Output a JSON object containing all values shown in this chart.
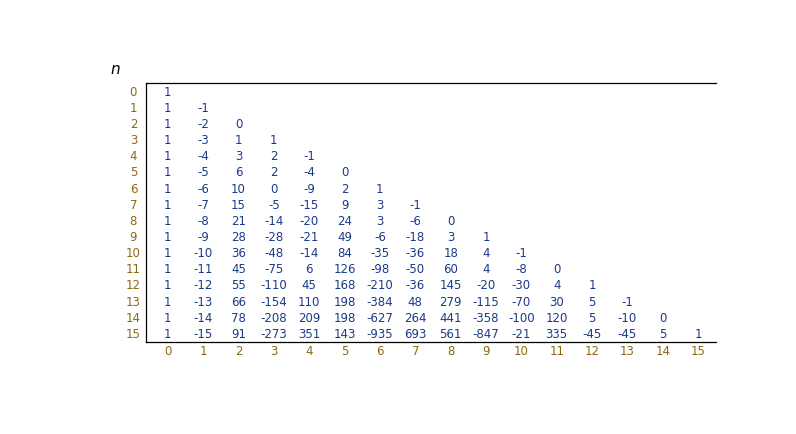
{
  "title": "n",
  "rows": [
    [
      0,
      [
        1
      ]
    ],
    [
      1,
      [
        1,
        -1
      ]
    ],
    [
      2,
      [
        1,
        -2,
        0
      ]
    ],
    [
      3,
      [
        1,
        -3,
        1,
        1
      ]
    ],
    [
      4,
      [
        1,
        -4,
        3,
        2,
        -1
      ]
    ],
    [
      5,
      [
        1,
        -5,
        6,
        2,
        -4,
        0
      ]
    ],
    [
      6,
      [
        1,
        -6,
        10,
        0,
        -9,
        2,
        1
      ]
    ],
    [
      7,
      [
        1,
        -7,
        15,
        -5,
        -15,
        9,
        3,
        -1
      ]
    ],
    [
      8,
      [
        1,
        -8,
        21,
        -14,
        -20,
        24,
        3,
        -6,
        0
      ]
    ],
    [
      9,
      [
        1,
        -9,
        28,
        -28,
        -21,
        49,
        -6,
        -18,
        3,
        1
      ]
    ],
    [
      10,
      [
        1,
        -10,
        36,
        -48,
        -14,
        84,
        -35,
        -36,
        18,
        4,
        -1
      ]
    ],
    [
      11,
      [
        1,
        -11,
        45,
        -75,
        6,
        126,
        -98,
        -50,
        60,
        4,
        -8,
        0
      ]
    ],
    [
      12,
      [
        1,
        -12,
        55,
        -110,
        45,
        168,
        -210,
        -36,
        145,
        -20,
        -30,
        4,
        1
      ]
    ],
    [
      13,
      [
        1,
        -13,
        66,
        -154,
        110,
        198,
        -384,
        48,
        279,
        -115,
        -70,
        30,
        5,
        -1
      ]
    ],
    [
      14,
      [
        1,
        -14,
        78,
        -208,
        209,
        198,
        -627,
        264,
        441,
        -358,
        -100,
        120,
        5,
        -10,
        0
      ]
    ],
    [
      15,
      [
        1,
        -15,
        91,
        -273,
        351,
        143,
        -935,
        693,
        561,
        -847,
        -21,
        335,
        -45,
        -45,
        5,
        1
      ]
    ]
  ],
  "col_labels": [
    0,
    1,
    2,
    3,
    4,
    5,
    6,
    7,
    8,
    9,
    10,
    11,
    12,
    13,
    14,
    15
  ],
  "row_label_color": "#8B6914",
  "col_label_color": "#8B6914",
  "data_color": "#1a3a8a",
  "bg_color": "#FFFFFF",
  "line_color": "#000000",
  "title_color": "#000000",
  "figsize": [
    7.96,
    4.35
  ],
  "dpi": 100
}
